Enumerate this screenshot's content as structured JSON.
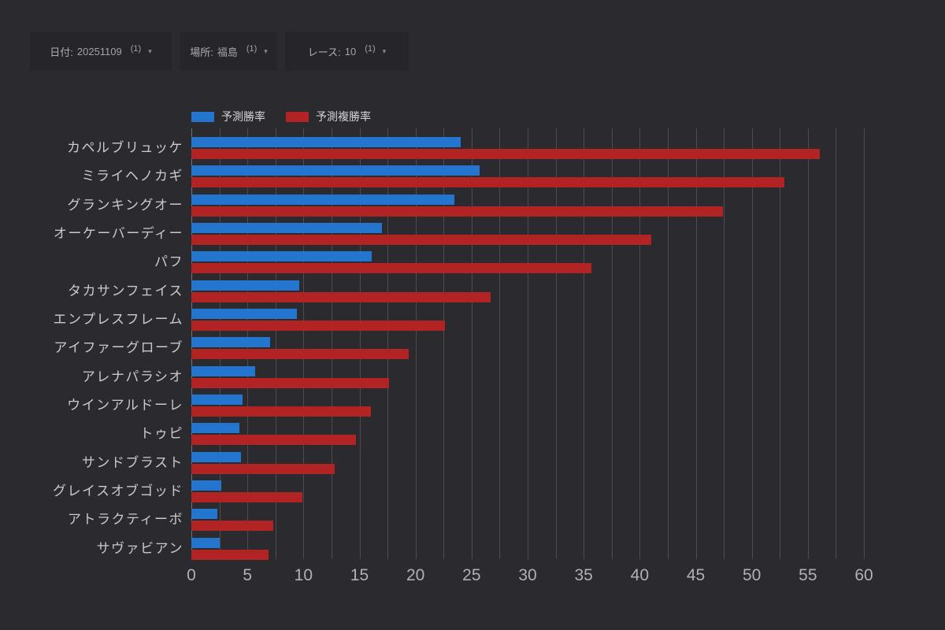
{
  "filters": [
    {
      "label": "日付:",
      "value": "20251109",
      "count": "(1)"
    },
    {
      "label": "場所:",
      "value": "福島",
      "count": "(1)"
    },
    {
      "label": "レース:",
      "value": "10",
      "count": "(1)"
    }
  ],
  "icons": {
    "caret_down": "▾"
  },
  "legend": [
    {
      "label": "予測勝率",
      "color": "#2375cd"
    },
    {
      "label": "予測複勝率",
      "color": "#b22423"
    }
  ],
  "colors": {
    "background": "#2b2b2f",
    "filter_box": "#26262a",
    "win_bar": "#2375cd",
    "place_bar": "#b22423",
    "gridline": "#4c4c51",
    "category_text": "#c9cacd",
    "tick_text": "#b0b1b5"
  },
  "chart_data": {
    "type": "bar",
    "orientation": "horizontal",
    "title": "",
    "xlabel": "",
    "ylabel": "",
    "xlim": [
      0,
      60
    ],
    "x_ticks": [
      0,
      5,
      10,
      15,
      20,
      25,
      30,
      35,
      40,
      45,
      50,
      55,
      60
    ],
    "grid": true,
    "grid_step": 2.5,
    "legend_position": "top-left",
    "categories": [
      "カペルブリュッケ",
      "ミライヘノカギ",
      "グランキングオー",
      "オーケーバーディー",
      "パフ",
      "タカサンフェイス",
      "エンプレスフレーム",
      "アイファーグローブ",
      "アレナパラシオ",
      "ウインアルドーレ",
      "トゥピ",
      "サンドブラスト",
      "グレイスオブゴッド",
      "アトラクティーボ",
      "サヴァビアン"
    ],
    "series": [
      {
        "name": "予測勝率",
        "color": "#2375cd",
        "values": [
          24.0,
          25.7,
          23.5,
          17.0,
          16.1,
          9.6,
          9.4,
          7.0,
          5.7,
          4.6,
          4.3,
          4.4,
          2.7,
          2.3,
          2.5
        ]
      },
      {
        "name": "予測複勝率",
        "color": "#b22423",
        "values": [
          56.1,
          52.9,
          47.4,
          41.0,
          35.7,
          26.7,
          22.6,
          19.4,
          17.6,
          16.0,
          14.7,
          12.8,
          9.9,
          7.3,
          6.9
        ]
      }
    ]
  }
}
